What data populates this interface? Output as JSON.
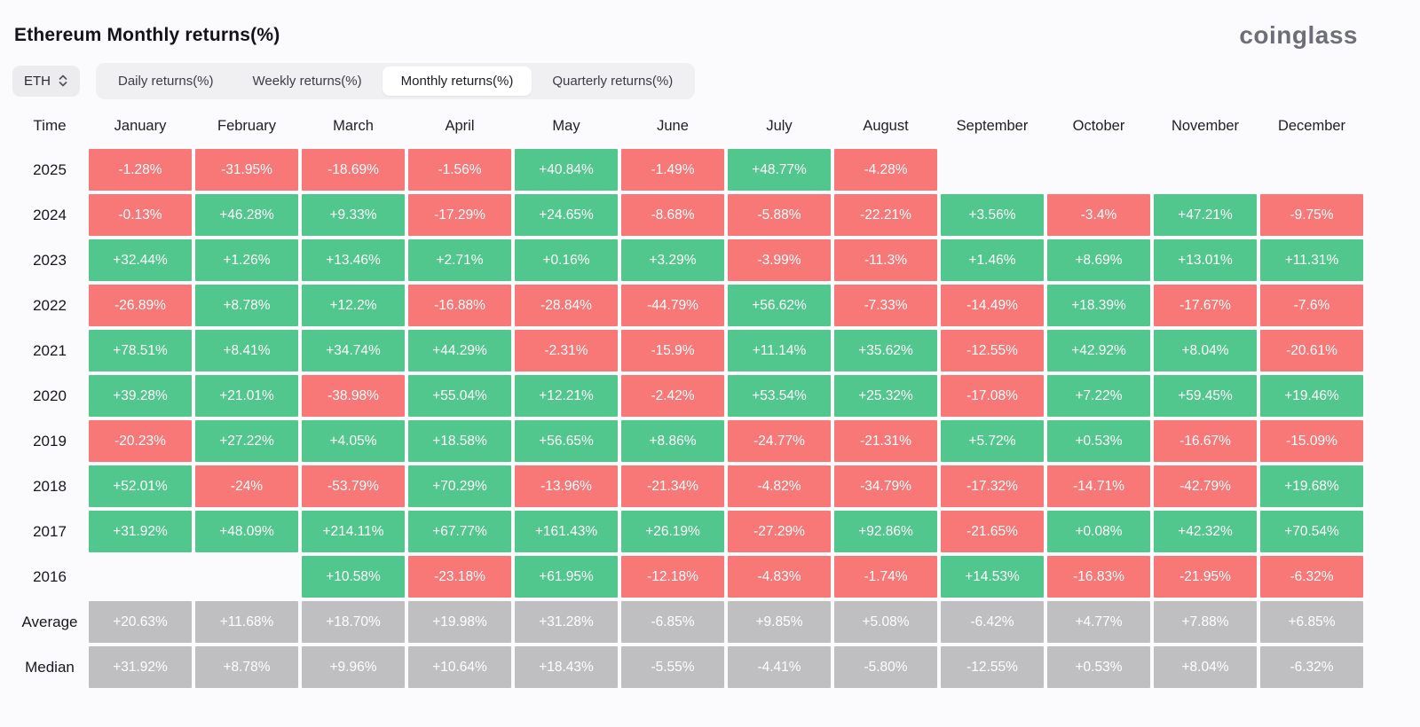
{
  "header": {
    "title": "Ethereum Monthly returns(%)",
    "logo": "coinglass"
  },
  "controls": {
    "symbol": {
      "value": "ETH",
      "icon": "updown-chevrons-icon"
    },
    "tabs": [
      {
        "label": "Daily returns(%)",
        "active": false
      },
      {
        "label": "Weekly returns(%)",
        "active": false
      },
      {
        "label": "Monthly returns(%)",
        "active": true
      },
      {
        "label": "Quarterly returns(%)",
        "active": false
      }
    ]
  },
  "colors": {
    "positive": "#51c78d",
    "negative": "#f87777",
    "summary": "#bfbfc1"
  },
  "table": {
    "time_header": "Time",
    "months": [
      "January",
      "February",
      "March",
      "April",
      "May",
      "June",
      "July",
      "August",
      "September",
      "October",
      "November",
      "December"
    ],
    "rows": [
      {
        "label": "2025",
        "type": "year",
        "values": [
          "-1.28%",
          "-31.95%",
          "-18.69%",
          "-1.56%",
          "+40.84%",
          "-1.49%",
          "+48.77%",
          "-4.28%",
          "",
          "",
          "",
          ""
        ]
      },
      {
        "label": "2024",
        "type": "year",
        "values": [
          "-0.13%",
          "+46.28%",
          "+9.33%",
          "-17.29%",
          "+24.65%",
          "-8.68%",
          "-5.88%",
          "-22.21%",
          "+3.56%",
          "-3.4%",
          "+47.21%",
          "-9.75%"
        ]
      },
      {
        "label": "2023",
        "type": "year",
        "values": [
          "+32.44%",
          "+1.26%",
          "+13.46%",
          "+2.71%",
          "+0.16%",
          "+3.29%",
          "-3.99%",
          "-11.3%",
          "+1.46%",
          "+8.69%",
          "+13.01%",
          "+11.31%"
        ]
      },
      {
        "label": "2022",
        "type": "year",
        "values": [
          "-26.89%",
          "+8.78%",
          "+12.2%",
          "-16.88%",
          "-28.84%",
          "-44.79%",
          "+56.62%",
          "-7.33%",
          "-14.49%",
          "+18.39%",
          "-17.67%",
          "-7.6%"
        ]
      },
      {
        "label": "2021",
        "type": "year",
        "values": [
          "+78.51%",
          "+8.41%",
          "+34.74%",
          "+44.29%",
          "-2.31%",
          "-15.9%",
          "+11.14%",
          "+35.62%",
          "-12.55%",
          "+42.92%",
          "+8.04%",
          "-20.61%"
        ]
      },
      {
        "label": "2020",
        "type": "year",
        "values": [
          "+39.28%",
          "+21.01%",
          "-38.98%",
          "+55.04%",
          "+12.21%",
          "-2.42%",
          "+53.54%",
          "+25.32%",
          "-17.08%",
          "+7.22%",
          "+59.45%",
          "+19.46%"
        ]
      },
      {
        "label": "2019",
        "type": "year",
        "values": [
          "-20.23%",
          "+27.22%",
          "+4.05%",
          "+18.58%",
          "+56.65%",
          "+8.86%",
          "-24.77%",
          "-21.31%",
          "+5.72%",
          "+0.53%",
          "-16.67%",
          "-15.09%"
        ]
      },
      {
        "label": "2018",
        "type": "year",
        "values": [
          "+52.01%",
          "-24%",
          "-53.79%",
          "+70.29%",
          "-13.96%",
          "-21.34%",
          "-4.82%",
          "-34.79%",
          "-17.32%",
          "-14.71%",
          "-42.79%",
          "+19.68%"
        ]
      },
      {
        "label": "2017",
        "type": "year",
        "values": [
          "+31.92%",
          "+48.09%",
          "+214.11%",
          "+67.77%",
          "+161.43%",
          "+26.19%",
          "-27.29%",
          "+92.86%",
          "-21.65%",
          "+0.08%",
          "+42.32%",
          "+70.54%"
        ]
      },
      {
        "label": "2016",
        "type": "year",
        "values": [
          "",
          "",
          "+10.58%",
          "-23.18%",
          "+61.95%",
          "-12.18%",
          "-4.83%",
          "-1.74%",
          "+14.53%",
          "-16.83%",
          "-21.95%",
          "-6.32%"
        ]
      },
      {
        "label": "Average",
        "type": "summary",
        "values": [
          "+20.63%",
          "+11.68%",
          "+18.70%",
          "+19.98%",
          "+31.28%",
          "-6.85%",
          "+9.85%",
          "+5.08%",
          "-6.42%",
          "+4.77%",
          "+7.88%",
          "+6.85%"
        ]
      },
      {
        "label": "Median",
        "type": "summary",
        "values": [
          "+31.92%",
          "+8.78%",
          "+9.96%",
          "+10.64%",
          "+18.43%",
          "-5.55%",
          "-4.41%",
          "-5.80%",
          "-12.55%",
          "+0.53%",
          "+8.04%",
          "-6.32%"
        ]
      }
    ]
  }
}
